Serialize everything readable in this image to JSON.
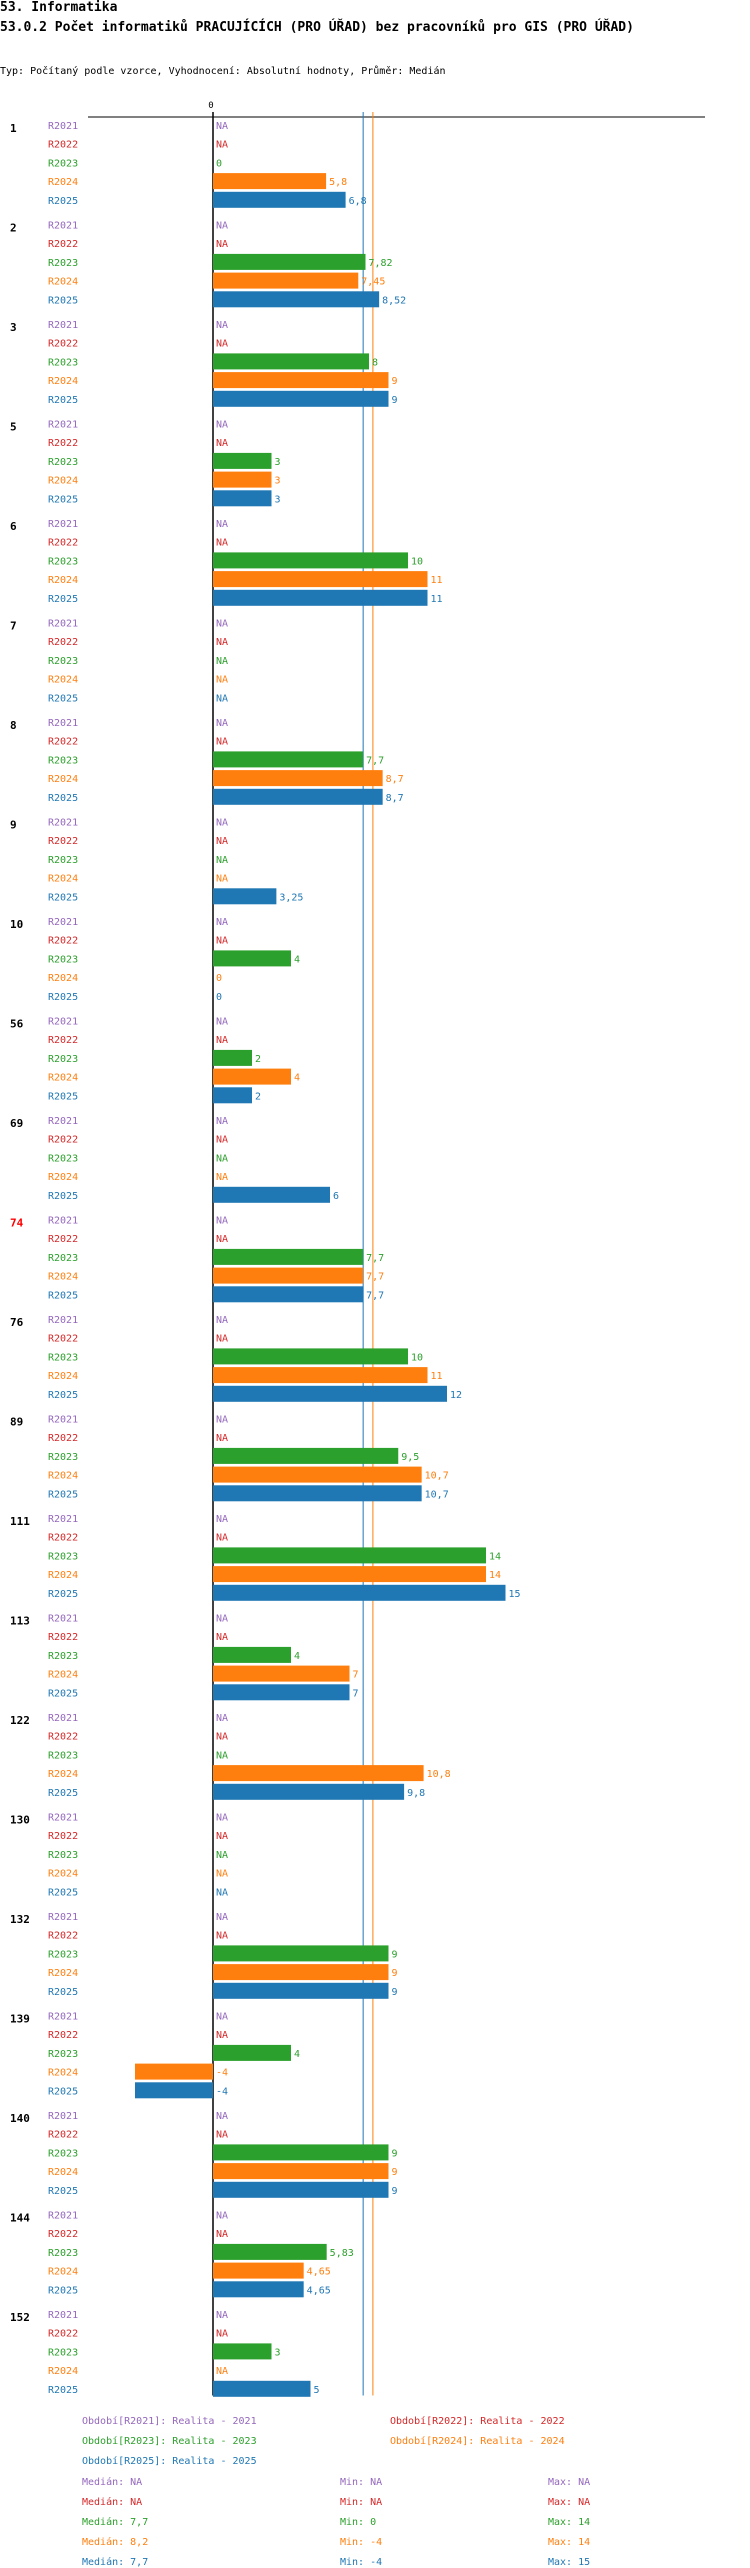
{
  "header": {
    "title": "53. Informatika",
    "subtitle": "53.0.2 Počet informatiků PRACUJÍCÍCH (PRO ÚŘAD) bez pracovníků pro GIS (PRO ÚŘAD)",
    "type_line": "Typ: Počítaný podle vzorce, Vyhodnocení: Absolutní hodnoty, Průměr: Medián"
  },
  "colors": {
    "R2021": "#9467bd",
    "R2022": "#d62728",
    "R2023": "#2ca02c",
    "R2024": "#ff7f0e",
    "R2025": "#1f77b4"
  },
  "chart_data": {
    "type": "bar",
    "orientation": "horizontal",
    "axis_zero_label": "0",
    "series_names": [
      "R2021",
      "R2022",
      "R2023",
      "R2024",
      "R2025"
    ],
    "groups": [
      {
        "label": "1",
        "highlight": false,
        "values": [
          null,
          null,
          0,
          5.8,
          6.8
        ],
        "labels": [
          "NA",
          "NA",
          "0",
          "5,8",
          "6,8"
        ]
      },
      {
        "label": "2",
        "highlight": false,
        "values": [
          null,
          null,
          7.82,
          7.45,
          8.52
        ],
        "labels": [
          "NA",
          "NA",
          "7,82",
          "7,45",
          "8,52"
        ]
      },
      {
        "label": "3",
        "highlight": false,
        "values": [
          null,
          null,
          8,
          9,
          9
        ],
        "labels": [
          "NA",
          "NA",
          "8",
          "9",
          "9"
        ]
      },
      {
        "label": "5",
        "highlight": false,
        "values": [
          null,
          null,
          3,
          3,
          3
        ],
        "labels": [
          "NA",
          "NA",
          "3",
          "3",
          "3"
        ]
      },
      {
        "label": "6",
        "highlight": false,
        "values": [
          null,
          null,
          10,
          11,
          11
        ],
        "labels": [
          "NA",
          "NA",
          "10",
          "11",
          "11"
        ]
      },
      {
        "label": "7",
        "highlight": false,
        "values": [
          null,
          null,
          null,
          null,
          null
        ],
        "labels": [
          "NA",
          "NA",
          "NA",
          "NA",
          "NA"
        ]
      },
      {
        "label": "8",
        "highlight": false,
        "values": [
          null,
          null,
          7.7,
          8.7,
          8.7
        ],
        "labels": [
          "NA",
          "NA",
          "7,7",
          "8,7",
          "8,7"
        ]
      },
      {
        "label": "9",
        "highlight": false,
        "values": [
          null,
          null,
          null,
          null,
          3.25
        ],
        "labels": [
          "NA",
          "NA",
          "NA",
          "NA",
          "3,25"
        ]
      },
      {
        "label": "10",
        "highlight": false,
        "values": [
          null,
          null,
          4,
          0,
          0
        ],
        "labels": [
          "NA",
          "NA",
          "4",
          "0",
          "0"
        ]
      },
      {
        "label": "56",
        "highlight": false,
        "values": [
          null,
          null,
          2,
          4,
          2
        ],
        "labels": [
          "NA",
          "NA",
          "2",
          "4",
          "2"
        ]
      },
      {
        "label": "69",
        "highlight": false,
        "values": [
          null,
          null,
          null,
          null,
          6
        ],
        "labels": [
          "NA",
          "NA",
          "NA",
          "NA",
          "6"
        ]
      },
      {
        "label": "74",
        "highlight": true,
        "values": [
          null,
          null,
          7.7,
          7.7,
          7.7
        ],
        "labels": [
          "NA",
          "NA",
          "7,7",
          "7,7",
          "7,7"
        ]
      },
      {
        "label": "76",
        "highlight": false,
        "values": [
          null,
          null,
          10,
          11,
          12
        ],
        "labels": [
          "NA",
          "NA",
          "10",
          "11",
          "12"
        ]
      },
      {
        "label": "89",
        "highlight": false,
        "values": [
          null,
          null,
          9.5,
          10.7,
          10.7
        ],
        "labels": [
          "NA",
          "NA",
          "9,5",
          "10,7",
          "10,7"
        ]
      },
      {
        "label": "111",
        "highlight": false,
        "values": [
          null,
          null,
          14,
          14,
          15
        ],
        "labels": [
          "NA",
          "NA",
          "14",
          "14",
          "15"
        ]
      },
      {
        "label": "113",
        "highlight": false,
        "values": [
          null,
          null,
          4,
          7,
          7
        ],
        "labels": [
          "NA",
          "NA",
          "4",
          "7",
          "7"
        ]
      },
      {
        "label": "122",
        "highlight": false,
        "values": [
          null,
          null,
          null,
          10.8,
          9.8
        ],
        "labels": [
          "NA",
          "NA",
          "NA",
          "10,8",
          "9,8"
        ]
      },
      {
        "label": "130",
        "highlight": false,
        "values": [
          null,
          null,
          null,
          null,
          null
        ],
        "labels": [
          "NA",
          "NA",
          "NA",
          "NA",
          "NA"
        ]
      },
      {
        "label": "132",
        "highlight": false,
        "values": [
          null,
          null,
          9,
          9,
          9
        ],
        "labels": [
          "NA",
          "NA",
          "9",
          "9",
          "9"
        ]
      },
      {
        "label": "139",
        "highlight": false,
        "values": [
          null,
          null,
          4,
          -4,
          -4
        ],
        "labels": [
          "NA",
          "NA",
          "4",
          "-4",
          "-4"
        ]
      },
      {
        "label": "140",
        "highlight": false,
        "values": [
          null,
          null,
          9,
          9,
          9
        ],
        "labels": [
          "NA",
          "NA",
          "9",
          "9",
          "9"
        ]
      },
      {
        "label": "144",
        "highlight": false,
        "values": [
          null,
          null,
          5.83,
          4.65,
          4.65
        ],
        "labels": [
          "NA",
          "NA",
          "5,83",
          "4,65",
          "4,65"
        ]
      },
      {
        "label": "152",
        "highlight": false,
        "values": [
          null,
          null,
          3,
          null,
          5
        ],
        "labels": [
          "NA",
          "NA",
          "3",
          "NA",
          "5"
        ]
      }
    ],
    "median_lines": [
      {
        "series": "R2023",
        "value": 7.7
      },
      {
        "series": "R2024",
        "value": 8.2
      },
      {
        "series": "R2025",
        "value": 7.7
      }
    ]
  },
  "legend": [
    {
      "series": "R2021",
      "text": "Období[R2021]: Realita - 2021"
    },
    {
      "series": "R2022",
      "text": "Období[R2022]: Realita - 2022"
    },
    {
      "series": "R2023",
      "text": "Období[R2023]: Realita - 2023"
    },
    {
      "series": "R2024",
      "text": "Období[R2024]: Realita - 2024"
    },
    {
      "series": "R2025",
      "text": "Období[R2025]: Realita - 2025"
    }
  ],
  "stats": [
    {
      "series": "R2021",
      "median": "Medián: NA",
      "min": "Min: NA",
      "max": "Max: NA"
    },
    {
      "series": "R2022",
      "median": "Medián: NA",
      "min": "Min: NA",
      "max": "Max: NA"
    },
    {
      "series": "R2023",
      "median": "Medián: 7,7",
      "min": "Min: 0",
      "max": "Max: 14"
    },
    {
      "series": "R2024",
      "median": "Medián: 8,2",
      "min": "Min: -4",
      "max": "Max: 14"
    },
    {
      "series": "R2025",
      "median": "Medián: 7,7",
      "min": "Min: -4",
      "max": "Max: 15"
    }
  ]
}
